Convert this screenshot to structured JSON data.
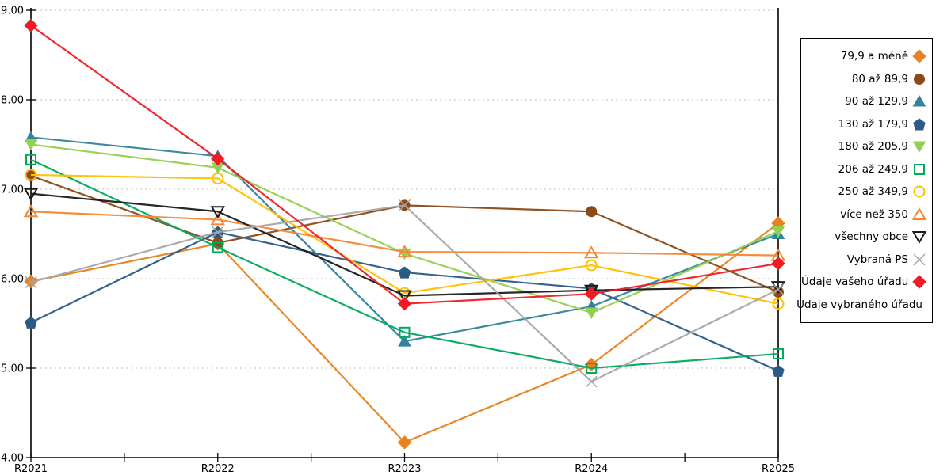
{
  "chart_data": {
    "type": "line",
    "title": "",
    "xlabel": "",
    "ylabel": "",
    "x": [
      "R2021",
      "R2022",
      "R2023",
      "R2024",
      "R2025"
    ],
    "ylim": [
      4,
      9
    ],
    "yticks": [
      4,
      5,
      6,
      7,
      8,
      9
    ],
    "ytick_labels": [
      "4.00",
      "5.00",
      "6.00",
      "7.00",
      "8.00",
      "9.00"
    ],
    "grid": "horizontal-dotted",
    "legend_position": "right",
    "series": [
      {
        "name": "79,9 a méně",
        "color": "#E8821E",
        "marker": "diamond",
        "style": "solid",
        "values": [
          5.97,
          6.39,
          4.17,
          5.04,
          6.62
        ]
      },
      {
        "name": "80 až 89,9",
        "color": "#8B4A17",
        "marker": "circle",
        "style": "solid",
        "values": [
          7.15,
          6.4,
          6.82,
          6.75,
          5.85
        ]
      },
      {
        "name": "90 až 129,9",
        "color": "#31849B",
        "marker": "triangle-up",
        "style": "solid",
        "values": [
          7.58,
          7.37,
          5.3,
          5.69,
          6.5
        ]
      },
      {
        "name": "130 až 179,9",
        "color": "#2B5A87",
        "marker": "pentagon",
        "style": "solid",
        "values": [
          5.51,
          6.52,
          6.07,
          5.89,
          4.97
        ]
      },
      {
        "name": "180 až 205,9",
        "color": "#92D050",
        "marker": "triangle-down",
        "style": "solid",
        "values": [
          7.5,
          7.24,
          6.28,
          5.62,
          6.53
        ]
      },
      {
        "name": "206 až 249,9",
        "color": "#00A95C",
        "marker": "square",
        "style": "hollow",
        "values": [
          7.33,
          6.35,
          5.4,
          5.0,
          5.16
        ]
      },
      {
        "name": "250 až 349,9",
        "color": "#FFC000",
        "marker": "circle",
        "style": "hollow",
        "values": [
          7.16,
          7.12,
          5.84,
          6.15,
          5.72
        ]
      },
      {
        "name": "více než 350",
        "color": "#F58634",
        "marker": "triangle-up",
        "style": "hollow",
        "values": [
          6.75,
          6.66,
          6.3,
          6.29,
          6.26
        ]
      },
      {
        "name": "všechny obce",
        "color": "#1A1A1A",
        "marker": "triangle-down",
        "style": "hollow",
        "values": [
          6.95,
          6.75,
          5.81,
          5.87,
          5.91
        ]
      },
      {
        "name": "Vybraná PS",
        "color": "#A6A6A6",
        "marker": "x",
        "style": "line",
        "values": [
          5.96,
          6.52,
          6.82,
          4.85,
          5.88
        ]
      },
      {
        "name": "Údaje vašeho úřadu",
        "color": "#EF1C24",
        "marker": "diamond",
        "style": "solid",
        "values": [
          8.83,
          7.34,
          5.72,
          5.83,
          6.17
        ]
      },
      {
        "name": "Údaje vybraného úřadu",
        "color": "#00B0F0",
        "marker": "circle",
        "style": "solid",
        "values": []
      }
    ]
  },
  "colors": {
    "axis": "#000000",
    "gridline": "#BFBFBF",
    "background": "#FFFFFF",
    "legend_border": "#000000"
  }
}
